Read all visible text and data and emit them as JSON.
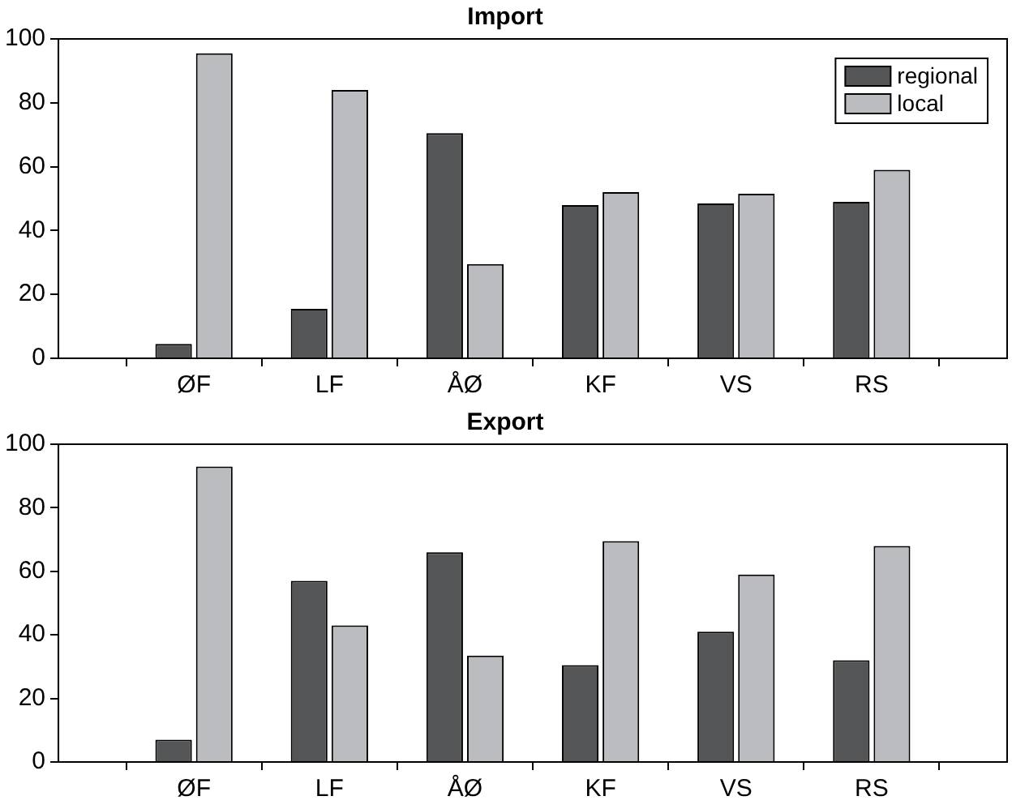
{
  "chart_data": [
    {
      "type": "bar",
      "title": "Import",
      "categories": [
        "ØF",
        "LF",
        "ÅØ",
        "KF",
        "VS",
        "RS"
      ],
      "series": [
        {
          "name": "regional",
          "color": "#545557",
          "values": [
            4.5,
            15.5,
            70.5,
            48,
            48.5,
            49
          ]
        },
        {
          "name": "local",
          "color": "#bbbcc0",
          "values": [
            95.5,
            84,
            29.5,
            52,
            51.5,
            59
          ]
        }
      ],
      "ylim": [
        0,
        100
      ],
      "yticks": [
        0,
        20,
        40,
        60,
        80,
        100
      ],
      "grid": false,
      "legend": "top right"
    },
    {
      "type": "bar",
      "title": "Export",
      "categories": [
        "ØF",
        "LF",
        "ÅØ",
        "KF",
        "VS",
        "RS"
      ],
      "series": [
        {
          "color": "#545557",
          "values": [
            7,
            57,
            66,
            30.5,
            41,
            32
          ]
        },
        {
          "color": "#bbbcc0",
          "values": [
            93,
            43,
            33.5,
            69.5,
            59,
            68
          ]
        }
      ],
      "ylim": [
        0,
        100
      ],
      "yticks": [
        0,
        20,
        40,
        60,
        80,
        100
      ],
      "grid": false,
      "legend": false
    }
  ]
}
